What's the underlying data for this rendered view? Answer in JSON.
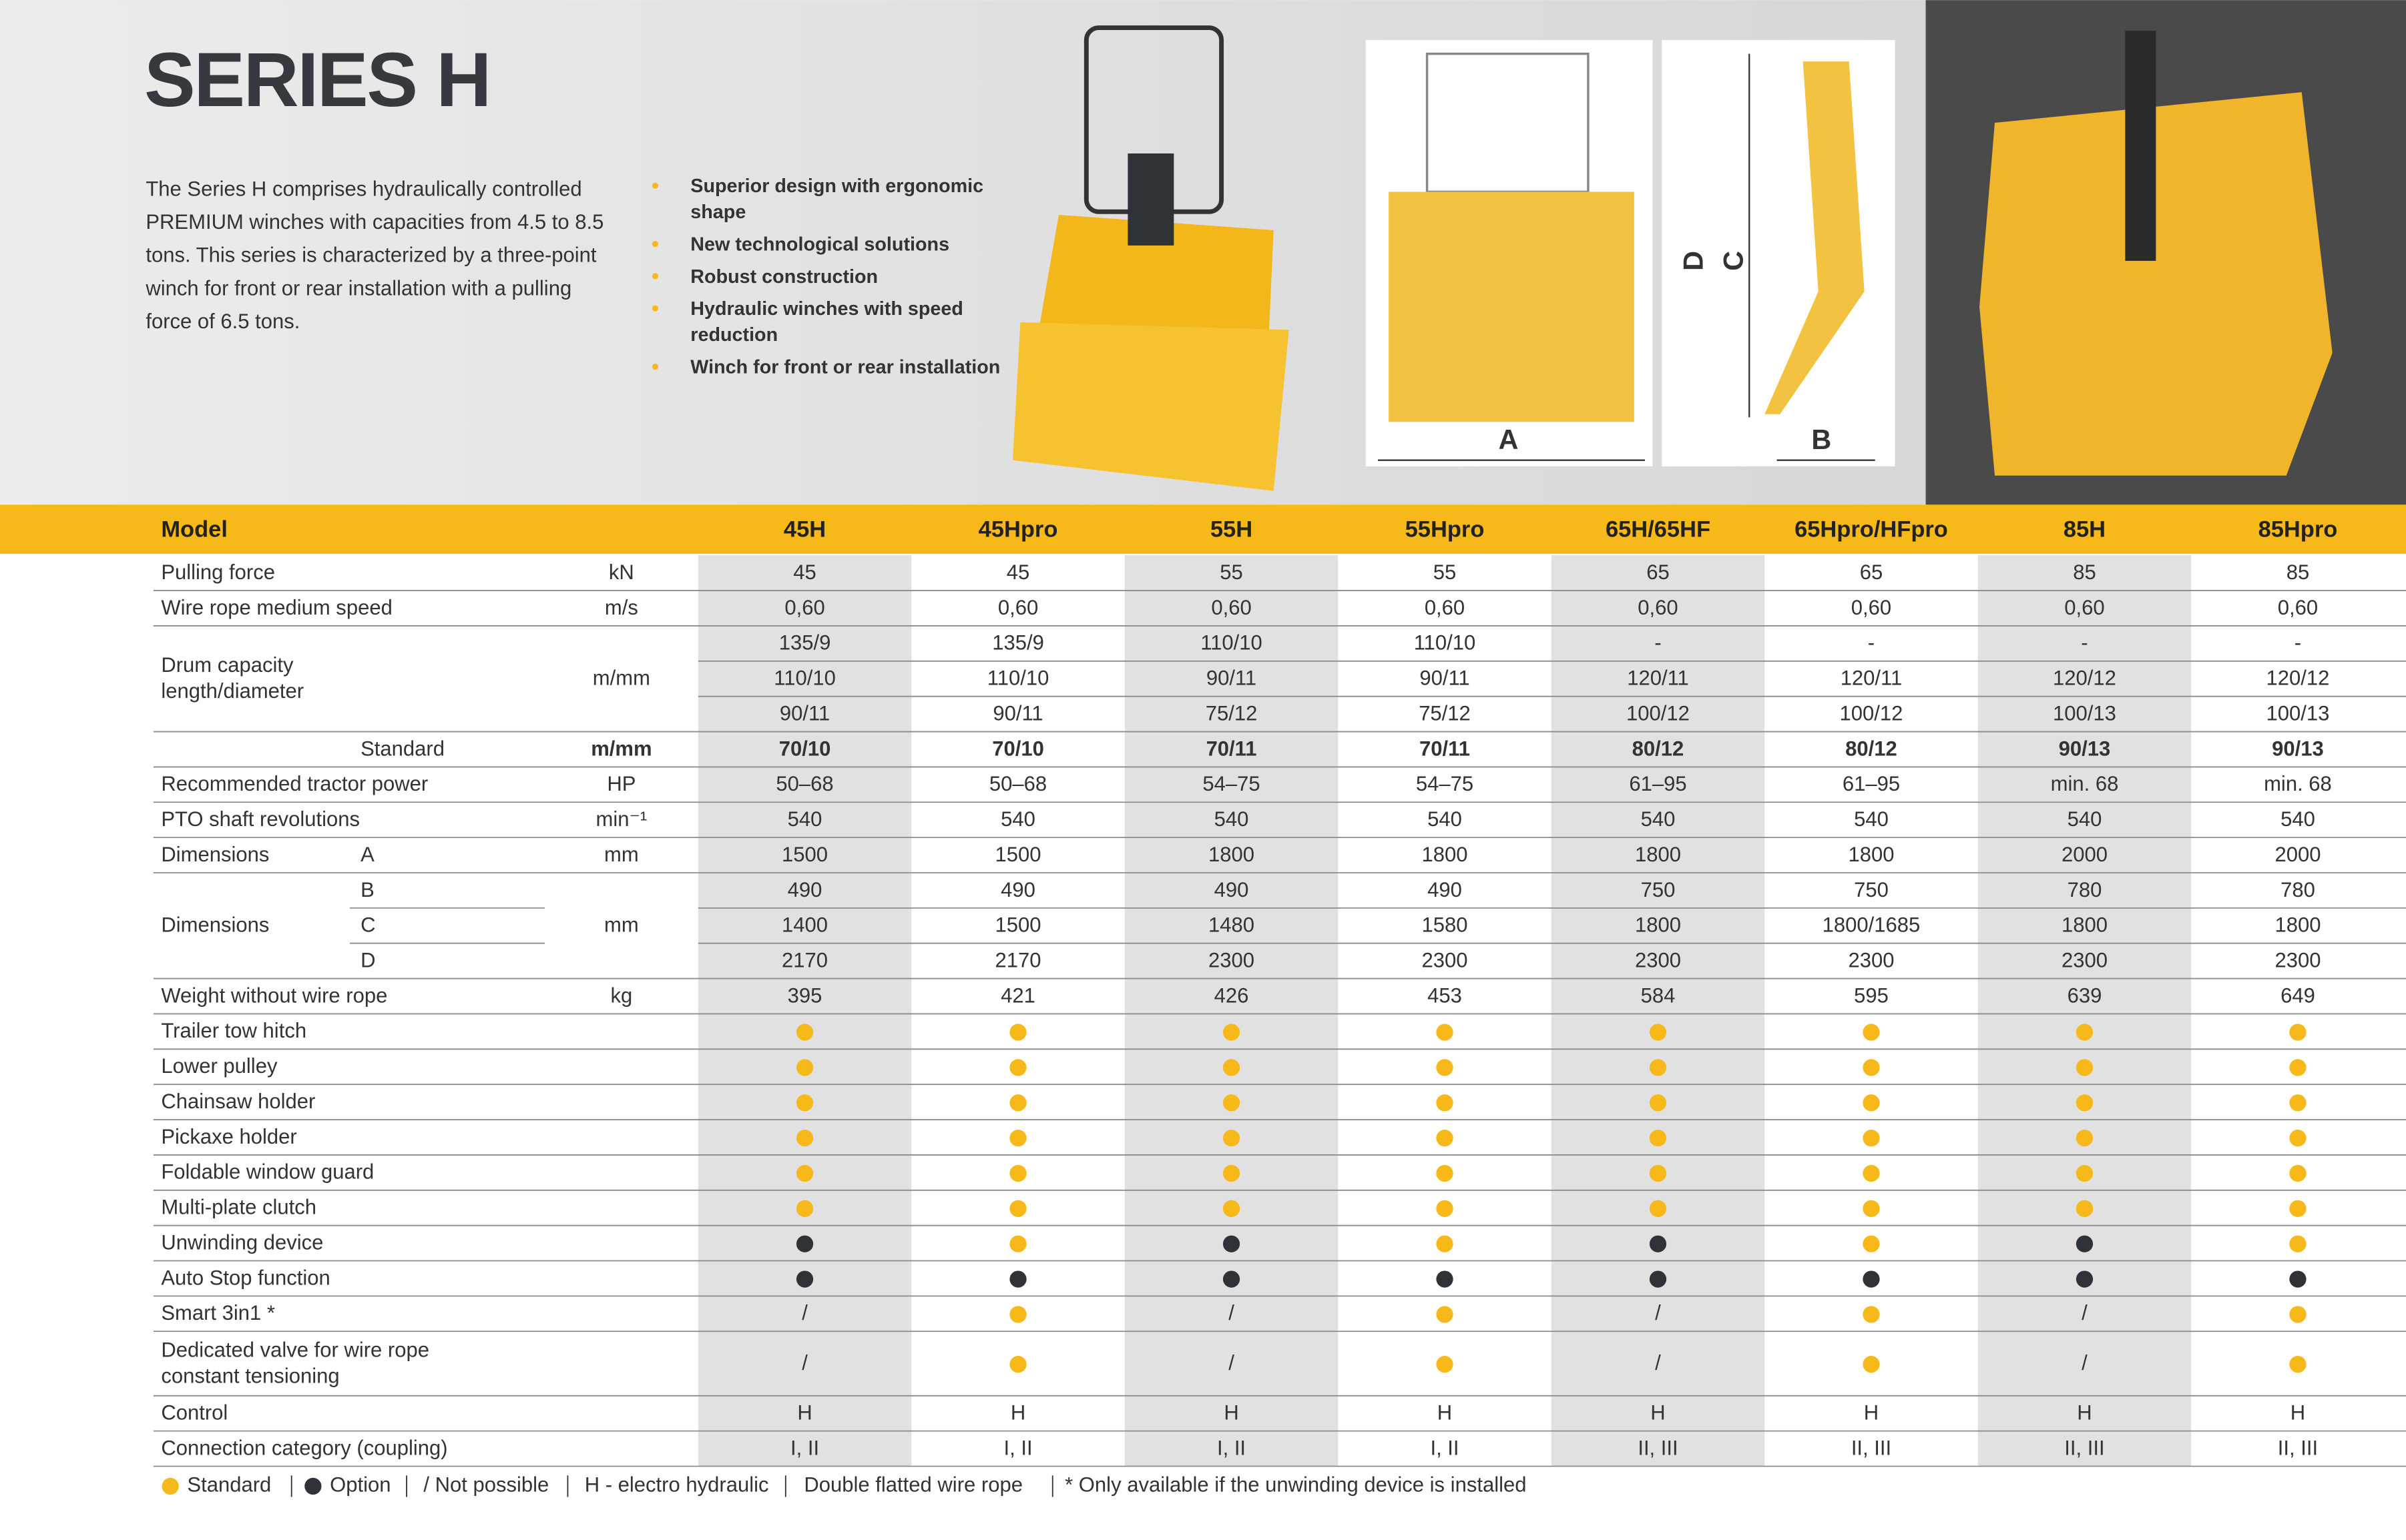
{
  "header": {
    "title": "SERIES H",
    "intro": [
      "The Series H comprises hydraulically controlled",
      "PREMIUM winches with capacities from 4.5 to 8.5",
      "tons. This series is characterized by a three-point",
      "winch for front or rear installation with a pulling",
      "force of 6.5 tons."
    ],
    "bullets": [
      [
        "Superior design with ergonomic",
        "shape"
      ],
      [
        "New technological solutions"
      ],
      [
        "Robust construction"
      ],
      [
        "Hydraulic winches with speed",
        "reduction"
      ],
      [
        "Winch for front or rear installation"
      ]
    ],
    "diagram_labels": [
      "A",
      "B",
      "C",
      "D"
    ]
  },
  "table": {
    "corner": "Model",
    "columns": [
      "45H",
      "45Hpro",
      "55H",
      "55Hpro",
      "65H/65HF",
      "65Hpro/HFpro",
      "85H",
      "85Hpro"
    ],
    "groups": [
      {
        "label": "Pulling force",
        "unit": "kN",
        "rows": [
          {
            "values": [
              "45",
              "45",
              "55",
              "55",
              "65",
              "65",
              "85",
              "85"
            ]
          }
        ]
      },
      {
        "label": "Wire rope medium speed",
        "unit": "m/s",
        "rows": [
          {
            "values": [
              "0,60",
              "0,60",
              "0,60",
              "0,60",
              "0,60",
              "0,60",
              "0,60",
              "0,60"
            ]
          }
        ]
      },
      {
        "label": [
          "Drum capacity",
          "length/diameter"
        ],
        "unit": "m/mm",
        "rows": [
          {
            "values": [
              "135/9",
              "135/9",
              "110/10",
              "110/10",
              "-",
              "-",
              "-",
              "-"
            ]
          },
          {
            "values": [
              "110/10",
              "110/10",
              "90/11",
              "90/11",
              "120/11",
              "120/11",
              "120/12",
              "120/12"
            ]
          },
          {
            "values": [
              "90/11",
              "90/11",
              "75/12",
              "75/12",
              "100/12",
              "100/12",
              "100/13",
              "100/13"
            ]
          }
        ]
      },
      {
        "unit": "m/mm",
        "bold": true,
        "rows": [
          {
            "sub": "Standard",
            "values": [
              "70/10",
              "70/10",
              "70/11",
              "70/11",
              "80/12",
              "80/12",
              "90/13",
              "90/13"
            ]
          }
        ]
      },
      {
        "label": "Recommended tractor power",
        "unit": "HP",
        "rows": [
          {
            "values": [
              "50–68",
              "50–68",
              "54–75",
              "54–75",
              "61–95",
              "61–95",
              "min. 68",
              "min. 68"
            ]
          }
        ]
      },
      {
        "label": "PTO shaft revolutions",
        "unit": "min⁻¹",
        "rows": [
          {
            "values": [
              "540",
              "540",
              "540",
              "540",
              "540",
              "540",
              "540",
              "540"
            ]
          }
        ]
      },
      {
        "label": "Dimensions",
        "unit": "mm",
        "rows": [
          {
            "sub": "A",
            "values": [
              "1500",
              "1500",
              "1800",
              "1800",
              "1800",
              "1800",
              "2000",
              "2000"
            ]
          }
        ]
      },
      {
        "label": "Dimensions",
        "unit": "mm",
        "rows": [
          {
            "sub": "B",
            "values": [
              "490",
              "490",
              "490",
              "490",
              "750",
              "750",
              "780",
              "780"
            ]
          },
          {
            "sub": "C",
            "values": [
              "1400",
              "1500",
              "1480",
              "1580",
              "1800",
              "1800/1685",
              "1800",
              "1800"
            ]
          },
          {
            "sub": "D",
            "values": [
              "2170",
              "2170",
              "2300",
              "2300",
              "2300",
              "2300",
              "2300",
              "2300"
            ]
          }
        ]
      },
      {
        "label": "Weight without wire rope",
        "unit": "kg",
        "rows": [
          {
            "values": [
              "395",
              "421",
              "426",
              "453",
              "584",
              "595",
              "639",
              "649"
            ]
          }
        ]
      },
      {
        "label": "Trailer tow hitch",
        "rows": [
          {
            "values": [
              "Standard",
              "Standard",
              "Standard",
              "Standard",
              "Standard",
              "Standard",
              "Standard",
              "Standard"
            ]
          }
        ]
      },
      {
        "label": "Lower pulley",
        "rows": [
          {
            "values": [
              "Standard",
              "Standard",
              "Standard",
              "Standard",
              "Standard",
              "Standard",
              "Standard",
              "Standard"
            ]
          }
        ]
      },
      {
        "label": "Chainsaw holder",
        "rows": [
          {
            "values": [
              "Standard",
              "Standard",
              "Standard",
              "Standard",
              "Standard",
              "Standard",
              "Standard",
              "Standard"
            ]
          }
        ]
      },
      {
        "label": "Pickaxe holder",
        "rows": [
          {
            "values": [
              "Standard",
              "Standard",
              "Standard",
              "Standard",
              "Standard",
              "Standard",
              "Standard",
              "Standard"
            ]
          }
        ]
      },
      {
        "label": "Foldable window guard",
        "rows": [
          {
            "values": [
              "Standard",
              "Standard",
              "Standard",
              "Standard",
              "Standard",
              "Standard",
              "Standard",
              "Standard"
            ]
          }
        ]
      },
      {
        "label": "Multi-plate clutch",
        "rows": [
          {
            "values": [
              "Standard",
              "Standard",
              "Standard",
              "Standard",
              "Standard",
              "Standard",
              "Standard",
              "Standard"
            ]
          }
        ]
      },
      {
        "label": "Unwinding device",
        "rows": [
          {
            "values": [
              "Option",
              "Standard",
              "Option",
              "Standard",
              "Option",
              "Standard",
              "Option",
              "Standard"
            ]
          }
        ]
      },
      {
        "label": "Auto Stop function",
        "rows": [
          {
            "values": [
              "Option",
              "Option",
              "Option",
              "Option",
              "Option",
              "Option",
              "Option",
              "Option"
            ]
          }
        ]
      },
      {
        "label": "Smart 3in1 *",
        "rows": [
          {
            "values": [
              "/",
              "Standard",
              "/",
              "Standard",
              "/",
              "Standard",
              "/",
              "Standard"
            ]
          }
        ]
      },
      {
        "label": [
          "Dedicated valve for wire rope",
          "constant tensioning"
        ],
        "rows": [
          {
            "values": [
              "/",
              "Standard",
              "/",
              "Standard",
              "/",
              "Standard",
              "/",
              "Standard"
            ]
          }
        ]
      },
      {
        "label": "Control",
        "rows": [
          {
            "values": [
              "H",
              "H",
              "H",
              "H",
              "H",
              "H",
              "H",
              "H"
            ]
          }
        ]
      },
      {
        "label": "Connection category (coupling)",
        "rows": [
          {
            "values": [
              "I, II",
              "I, II",
              "I, II",
              "I, II",
              "II, III",
              "II, III",
              "II, III",
              "II, III"
            ]
          }
        ]
      }
    ],
    "legend": [
      "Standard",
      "Option",
      "/ Not possible",
      "H - electro hydraulic",
      "Double flatted wire rope",
      "* Only available if the unwinding device is installed"
    ]
  }
}
